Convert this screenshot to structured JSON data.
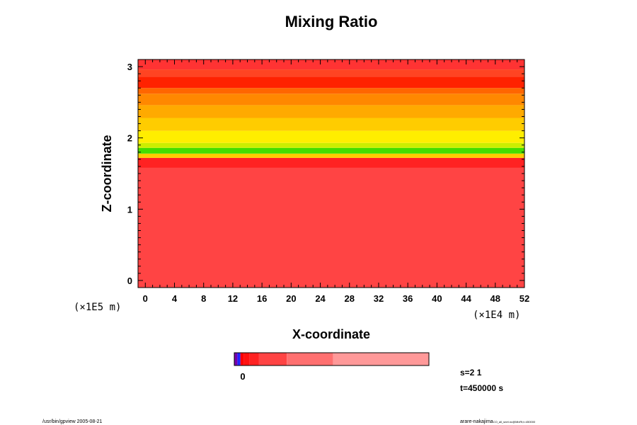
{
  "chart_data": {
    "type": "heatmap",
    "title": "Mixing Ratio",
    "xlabel": "X-coordinate",
    "ylabel": "Z-coordinate",
    "x_unit": "(×1E4 m)",
    "y_unit": "(×1E5 m)",
    "xlim": [
      -1,
      52
    ],
    "ylim": [
      -0.1,
      3.1
    ],
    "x_ticks": [
      "0",
      "4",
      "8",
      "12",
      "16",
      "20",
      "24",
      "28",
      "32",
      "36",
      "40",
      "44",
      "48",
      "52"
    ],
    "y_ticks": [
      "0",
      "1",
      "2",
      "3"
    ],
    "layers": [
      {
        "z0": -0.1,
        "z1": 1.58,
        "color": "#ff4444"
      },
      {
        "z0": 1.58,
        "z1": 1.72,
        "color": "#ff2222"
      },
      {
        "z0": 1.72,
        "z1": 1.78,
        "color": "#ffcc00"
      },
      {
        "z0": 1.78,
        "z1": 1.86,
        "color": "#44dd00"
      },
      {
        "z0": 1.86,
        "z1": 1.93,
        "color": "#ccee00"
      },
      {
        "z0": 1.93,
        "z1": 2.1,
        "color": "#ffee00"
      },
      {
        "z0": 2.1,
        "z1": 2.28,
        "color": "#ffcc00"
      },
      {
        "z0": 2.28,
        "z1": 2.46,
        "color": "#ffaa00"
      },
      {
        "z0": 2.46,
        "z1": 2.62,
        "color": "#ff8800"
      },
      {
        "z0": 2.62,
        "z1": 2.7,
        "color": "#ff6600"
      },
      {
        "z0": 2.7,
        "z1": 2.86,
        "color": "#ff2200"
      },
      {
        "z0": 2.86,
        "z1": 2.96,
        "color": "#ff4422"
      },
      {
        "z0": 2.96,
        "z1": 3.1,
        "color": "#ff3333"
      }
    ],
    "colorbar": {
      "label": "0",
      "segments": [
        {
          "weight": 1,
          "color": "#7700aa"
        },
        {
          "weight": 1,
          "color": "#2222ff"
        },
        {
          "weight": 1,
          "color": "#ff0000"
        },
        {
          "weight": 2,
          "color": "#ff1111"
        },
        {
          "weight": 3,
          "color": "#ff2222"
        },
        {
          "weight": 9,
          "color": "#ff4444"
        },
        {
          "weight": 15,
          "color": "#ff7070"
        },
        {
          "weight": 31,
          "color": "#ff9999"
        }
      ]
    },
    "info": {
      "scale": "s=2 1",
      "time": "t=450000 s"
    }
  },
  "footer": {
    "left": "/usr/bin/gpview 2005-08-21",
    "right": "arare-nakajima",
    "right_small": "CO_all_snet.nc@MixRt,t=450000"
  }
}
